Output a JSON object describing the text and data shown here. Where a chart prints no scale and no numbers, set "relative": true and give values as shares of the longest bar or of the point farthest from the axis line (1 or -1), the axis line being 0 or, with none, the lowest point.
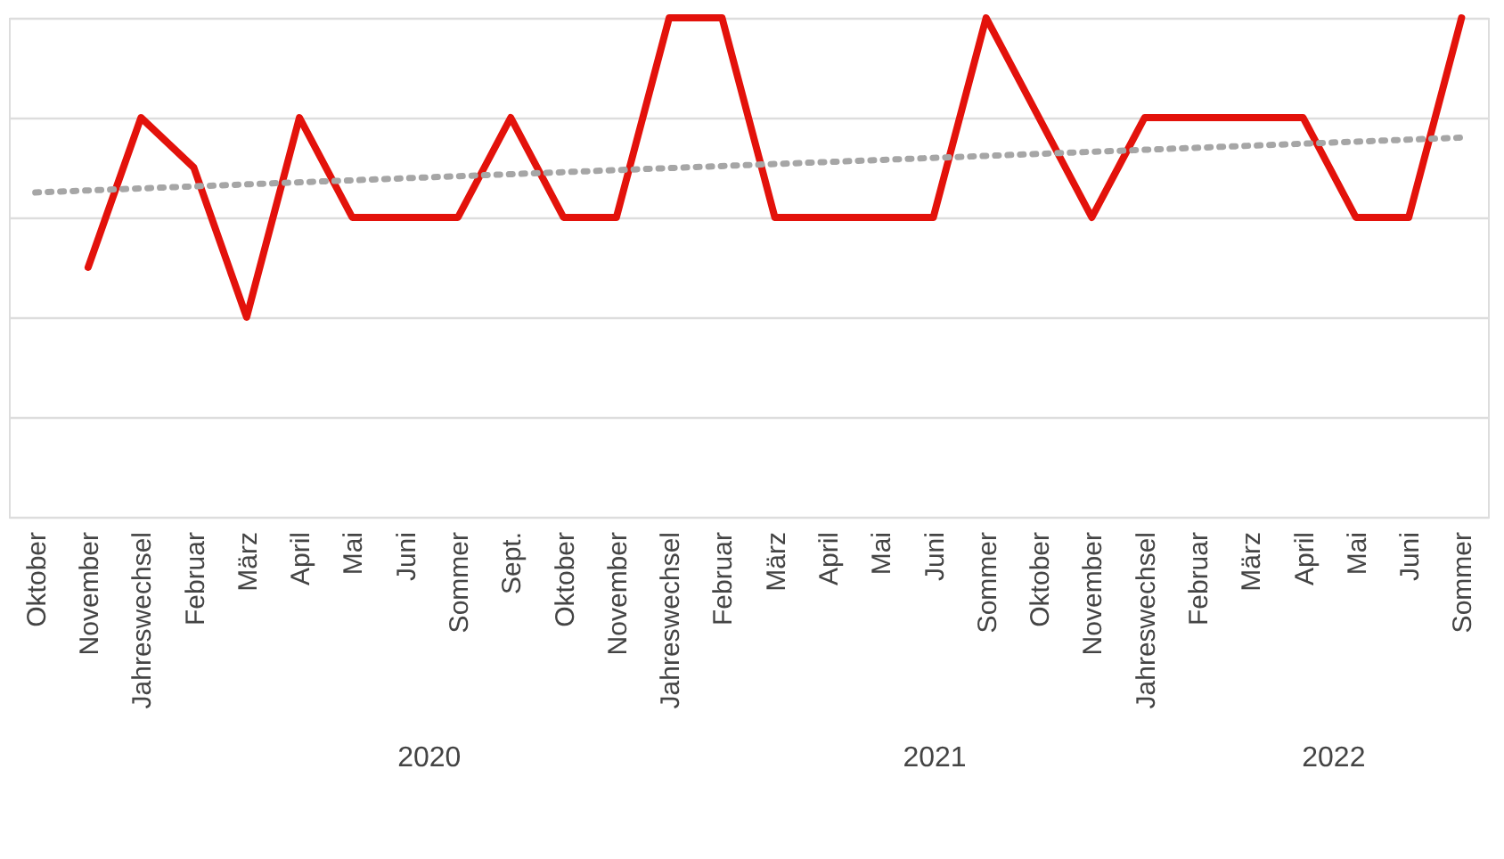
{
  "chart_data": {
    "type": "line",
    "relative": true,
    "grid": "y",
    "legend": false,
    "categories": [
      "Oktober",
      "November",
      "Jahreswechsel",
      "Februar",
      "März",
      "April",
      "Mai",
      "Juni",
      "Sommer",
      "Sept.",
      "Oktober",
      "November",
      "Jahreswechsel",
      "Februar",
      "März",
      "April",
      "Mai",
      "Juni",
      "Sommer",
      "Oktober",
      "November",
      "Jahreswechsel",
      "Februar",
      "März",
      "April",
      "Mai",
      "Juni",
      "Sommer"
    ],
    "series": [
      {
        "color": "#e3120b",
        "line_style": "solid",
        "values": [
          null,
          0.5,
          0.8,
          0.7,
          0.4,
          0.8,
          0.6,
          0.6,
          0.6,
          0.8,
          0.6,
          0.6,
          1,
          1,
          0.6,
          0.6,
          0.6,
          0.6,
          1,
          0.8,
          0.6,
          0.8,
          0.8,
          0.8,
          0.8,
          0.6,
          0.6,
          1
        ]
      },
      {
        "color": "#a6a6a6",
        "line_style": "dotted",
        "values": [
          0.65,
          null,
          null,
          null,
          null,
          null,
          null,
          null,
          null,
          null,
          null,
          null,
          null,
          null,
          null,
          null,
          null,
          null,
          null,
          null,
          null,
          null,
          null,
          null,
          null,
          null,
          null,
          0.76
        ]
      }
    ],
    "annotations": [
      "2020",
      "2021",
      "2022"
    ]
  }
}
